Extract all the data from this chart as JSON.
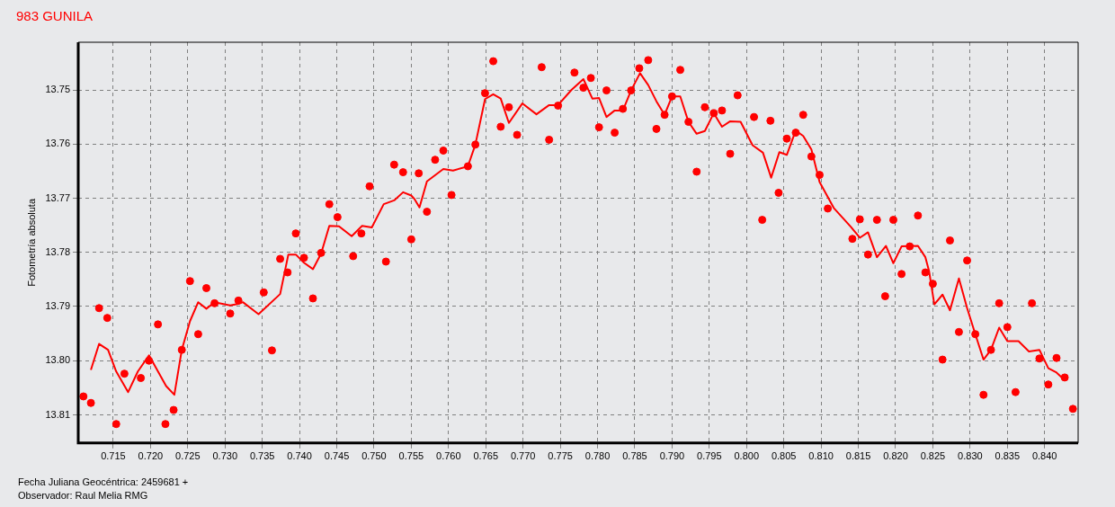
{
  "chart_data": {
    "type": "scatter",
    "title": "983 GUNILA",
    "xlabel": "Fecha Juliana Geocéntrica: 2459681 +",
    "ylabel": "Fotometría absoluta",
    "annotations": [
      "Observador: Raul Melia RMG"
    ],
    "xlim": [
      0.7103,
      0.8445
    ],
    "ylim": [
      13.8152,
      13.7412
    ],
    "xticks": [
      {
        "value": 0.715,
        "label": "0.715"
      },
      {
        "value": 0.72,
        "label": "0.720"
      },
      {
        "value": 0.725,
        "label": "0.725"
      },
      {
        "value": 0.73,
        "label": "0.730"
      },
      {
        "value": 0.735,
        "label": "0.735"
      },
      {
        "value": 0.74,
        "label": "0.740"
      },
      {
        "value": 0.745,
        "label": "0.745"
      },
      {
        "value": 0.75,
        "label": "0.750"
      },
      {
        "value": 0.755,
        "label": "0.755"
      },
      {
        "value": 0.76,
        "label": "0.760"
      },
      {
        "value": 0.765,
        "label": "0.765"
      },
      {
        "value": 0.77,
        "label": "0.770"
      },
      {
        "value": 0.775,
        "label": "0.775"
      },
      {
        "value": 0.78,
        "label": "0.780"
      },
      {
        "value": 0.785,
        "label": "0.785"
      },
      {
        "value": 0.79,
        "label": "0.790"
      },
      {
        "value": 0.795,
        "label": "0.795"
      },
      {
        "value": 0.8,
        "label": "0.800"
      },
      {
        "value": 0.805,
        "label": "0.805"
      },
      {
        "value": 0.81,
        "label": "0.810"
      },
      {
        "value": 0.815,
        "label": "0.815"
      },
      {
        "value": 0.82,
        "label": "0.820"
      },
      {
        "value": 0.825,
        "label": "0.825"
      },
      {
        "value": 0.83,
        "label": "0.830"
      },
      {
        "value": 0.835,
        "label": "0.835"
      },
      {
        "value": 0.84,
        "label": "0.840"
      }
    ],
    "yticks": [
      13.75,
      13.76,
      13.77,
      13.78,
      13.79,
      {
        "value": 13.8,
        "label": "13.80"
      },
      13.81
    ],
    "grid": true,
    "legend": false,
    "series": [
      {
        "marker": "circle",
        "color": "#ff0000",
        "x": [
          0.711,
          0.712,
          0.7131,
          0.7142,
          0.7154,
          0.7165,
          0.7187,
          0.7198,
          0.721,
          0.722,
          0.7231,
          0.7242,
          0.7253,
          0.7264,
          0.7275,
          0.7286,
          0.7307,
          0.7318,
          0.7352,
          0.7363,
          0.7374,
          0.7384,
          0.7395,
          0.7406,
          0.7418,
          0.7429,
          0.744,
          0.7451,
          0.7472,
          0.7483,
          0.7494,
          0.7516,
          0.7527,
          0.7539,
          0.755,
          0.756,
          0.7571,
          0.7582,
          0.7593,
          0.7604,
          0.7626,
          0.7636,
          0.7649,
          0.766,
          0.767,
          0.7681,
          0.7692,
          0.7725,
          0.7735,
          0.7747,
          0.7769,
          0.7781,
          0.7791,
          0.7802,
          0.7812,
          0.7823,
          0.7834,
          0.7845,
          0.7856,
          0.7868,
          0.7879,
          0.789,
          0.79,
          0.7911,
          0.7922,
          0.7933,
          0.7944,
          0.7956,
          0.7967,
          0.7978,
          0.7988,
          0.801,
          0.8021,
          0.8032,
          0.8043,
          0.8054,
          0.8066,
          0.8076,
          0.8087,
          0.8098,
          0.8109,
          0.8142,
          0.8152,
          0.8163,
          0.8175,
          0.8186,
          0.8197,
          0.8208,
          0.8219,
          0.823,
          0.824,
          0.825,
          0.8263,
          0.8273,
          0.8285,
          0.8296,
          0.8307,
          0.8318,
          0.8328,
          0.8339,
          0.835,
          0.8361,
          0.8383,
          0.8393,
          0.8405,
          0.8416,
          0.8427,
          0.8438
        ],
        "values": [
          13.8066,
          13.8078,
          13.7903,
          13.7921,
          13.8117,
          13.8024,
          13.8032,
          13.8,
          13.7933,
          13.8117,
          13.8091,
          13.798,
          13.7853,
          13.7951,
          13.7866,
          13.7894,
          13.7913,
          13.7889,
          13.7874,
          13.7981,
          13.7812,
          13.7837,
          13.7765,
          13.781,
          13.7885,
          13.7801,
          13.7711,
          13.7735,
          13.7807,
          13.7765,
          13.7678,
          13.7817,
          13.7638,
          13.7652,
          13.7776,
          13.7654,
          13.7725,
          13.7629,
          13.7612,
          13.7694,
          13.7641,
          13.7601,
          13.7506,
          13.7447,
          13.7568,
          13.7532,
          13.7583,
          13.7458,
          13.7592,
          13.7529,
          13.7468,
          13.7496,
          13.7478,
          13.7569,
          13.7501,
          13.7579,
          13.7535,
          13.7501,
          13.746,
          13.7445,
          13.7572,
          13.7546,
          13.7512,
          13.7463,
          13.7559,
          13.7651,
          13.7532,
          13.7543,
          13.7538,
          13.7618,
          13.751,
          13.755,
          13.774,
          13.7557,
          13.769,
          13.759,
          13.7579,
          13.7546,
          13.7623,
          13.7657,
          13.7719,
          13.7775,
          13.7739,
          13.7804,
          13.774,
          13.7881,
          13.774,
          13.784,
          13.7789,
          13.7732,
          13.7837,
          13.7858,
          13.7998,
          13.7778,
          13.7947,
          13.7815,
          13.7951,
          13.8063,
          13.798,
          13.7894,
          13.7938,
          13.8058,
          13.7894,
          13.7996,
          13.8044,
          13.7995,
          13.8031,
          13.8089
        ]
      },
      {
        "type": "line",
        "marker": "none",
        "color": "#ff0000",
        "x": [
          0.712,
          0.7131,
          0.7143,
          0.7154,
          0.717,
          0.7183,
          0.7198,
          0.7221,
          0.7232,
          0.7242,
          0.7253,
          0.7264,
          0.7275,
          0.7286,
          0.7307,
          0.7318,
          0.7324,
          0.7345,
          0.7374,
          0.7385,
          0.7395,
          0.7406,
          0.7418,
          0.7429,
          0.744,
          0.7453,
          0.747,
          0.7484,
          0.7497,
          0.7513,
          0.7527,
          0.7539,
          0.755,
          0.7554,
          0.7561,
          0.7571,
          0.7593,
          0.7606,
          0.7626,
          0.7636,
          0.7649,
          0.766,
          0.767,
          0.7681,
          0.7699,
          0.7718,
          0.7735,
          0.7747,
          0.7765,
          0.7781,
          0.7793,
          0.7802,
          0.7812,
          0.7823,
          0.7834,
          0.7845,
          0.7857,
          0.7868,
          0.7879,
          0.789,
          0.79,
          0.7911,
          0.7922,
          0.7933,
          0.7944,
          0.7956,
          0.7967,
          0.7978,
          0.7992,
          0.8008,
          0.8022,
          0.8033,
          0.8044,
          0.8054,
          0.8066,
          0.8076,
          0.8087,
          0.8098,
          0.8117,
          0.814,
          0.8152,
          0.8163,
          0.8175,
          0.8187,
          0.8197,
          0.8208,
          0.823,
          0.824,
          0.8245,
          0.8252,
          0.8263,
          0.8273,
          0.8285,
          0.8296,
          0.8307,
          0.8318,
          0.8328,
          0.8339,
          0.835,
          0.8365,
          0.8379,
          0.8393,
          0.8405,
          0.8416,
          0.8427
        ],
        "values": [
          13.8017,
          13.7969,
          13.798,
          13.802,
          13.8058,
          13.802,
          13.799,
          13.8047,
          13.8063,
          13.798,
          13.7927,
          13.7892,
          13.7904,
          13.7892,
          13.7898,
          13.7895,
          13.7892,
          13.7914,
          13.7877,
          13.7804,
          13.7804,
          13.7819,
          13.7831,
          13.7802,
          13.7751,
          13.7752,
          13.777,
          13.7751,
          13.7754,
          13.7711,
          13.7704,
          13.7689,
          13.7695,
          13.7701,
          13.7717,
          13.7669,
          13.7646,
          13.7649,
          13.7641,
          13.7601,
          13.7517,
          13.7508,
          13.7516,
          13.7561,
          13.7525,
          13.7545,
          13.7528,
          13.7528,
          13.75,
          13.748,
          13.7516,
          13.7515,
          13.755,
          13.7538,
          13.7538,
          13.7501,
          13.7469,
          13.7491,
          13.7521,
          13.7546,
          13.7512,
          13.7512,
          13.7559,
          13.7581,
          13.7576,
          13.7543,
          13.7568,
          13.7558,
          13.7559,
          13.7602,
          13.7616,
          13.7662,
          13.7615,
          13.762,
          13.7575,
          13.7585,
          13.761,
          13.767,
          13.7718,
          13.7753,
          13.7773,
          13.7763,
          13.7809,
          13.7788,
          13.782,
          13.7789,
          13.7788,
          13.7809,
          13.7835,
          13.7896,
          13.7878,
          13.7907,
          13.7848,
          13.7903,
          13.7951,
          13.7998,
          13.798,
          13.7939,
          13.7964,
          13.7964,
          13.7983,
          13.798,
          13.8014,
          13.8022,
          13.8036
        ]
      }
    ]
  }
}
